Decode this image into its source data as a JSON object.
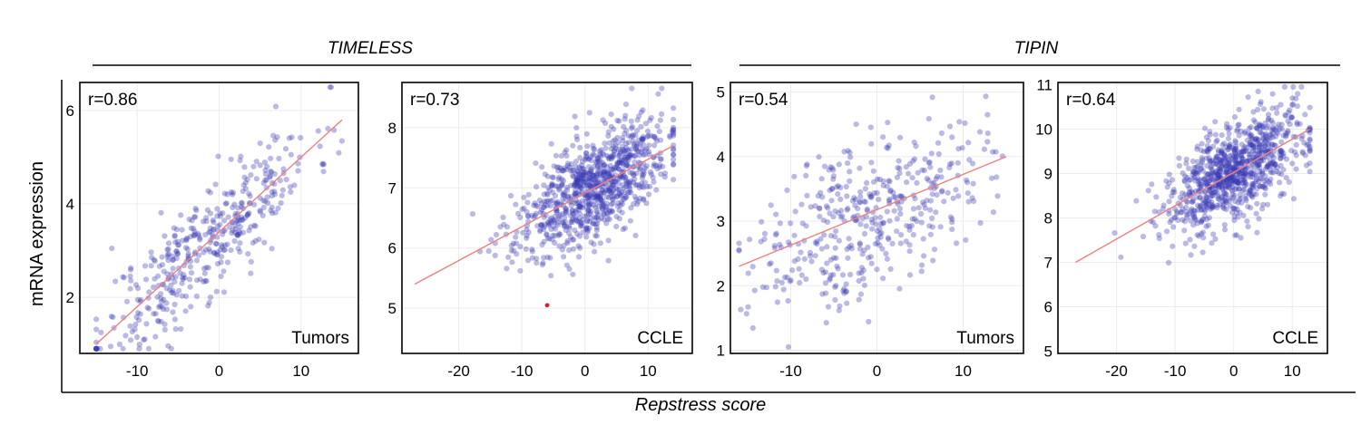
{
  "figure": {
    "group_titles": [
      "TIMELESS",
      "TIPIN"
    ],
    "ylabel": "mRNA expression",
    "xlabel": "Repstress score"
  },
  "chart_data": [
    {
      "type": "scatter",
      "group": "TIMELESS",
      "r_label": "r=0.86",
      "dataset_label": "Tumors",
      "xlim": [
        -17,
        17
      ],
      "ylim": [
        0.8,
        6.6
      ],
      "xticks": [
        -10,
        0,
        10
      ],
      "yticks": [
        2,
        4,
        6
      ],
      "point_color": "#3a3ab4",
      "fit_color": "#f08080",
      "fit": {
        "x": [
          -15,
          15
        ],
        "y": [
          1.0,
          5.8
        ]
      },
      "n_points": 420,
      "seed": 11,
      "x_center": -1.5,
      "x_spread": 6.5,
      "noise": 0.6,
      "outliers": []
    },
    {
      "type": "scatter",
      "group": "TIMELESS",
      "r_label": "r=0.73",
      "dataset_label": "CCLE",
      "xlim": [
        -29,
        17
      ],
      "ylim": [
        4.25,
        8.75
      ],
      "xticks": [
        -20,
        -10,
        0,
        10
      ],
      "yticks": [
        5,
        6,
        7,
        8
      ],
      "point_color": "#3a3ab4",
      "fit_color": "#f08080",
      "fit": {
        "x": [
          -27,
          14
        ],
        "y": [
          5.4,
          7.7
        ]
      },
      "n_points": 900,
      "seed": 23,
      "x_center": 1,
      "x_spread": 6,
      "noise": 0.42,
      "outliers": [
        {
          "x": -6,
          "y": 5.05,
          "color": "#e02020"
        }
      ]
    },
    {
      "type": "scatter",
      "group": "TIPIN",
      "r_label": "r=0.54",
      "dataset_label": "Tumors",
      "xlim": [
        -17,
        17
      ],
      "ylim": [
        0.95,
        5.15
      ],
      "xticks": [
        -10,
        0,
        10
      ],
      "yticks": [
        1,
        2,
        3,
        4,
        5
      ],
      "point_color": "#3a3ab4",
      "fit_color": "#f08080",
      "fit": {
        "x": [
          -16,
          15
        ],
        "y": [
          2.3,
          4.0
        ]
      },
      "n_points": 420,
      "seed": 37,
      "x_center": -1,
      "x_spread": 6.5,
      "noise": 0.6,
      "outliers": []
    },
    {
      "type": "scatter",
      "group": "TIPIN",
      "r_label": "r=0.64",
      "dataset_label": "CCLE",
      "xlim": [
        -30,
        16
      ],
      "ylim": [
        4.95,
        11.05
      ],
      "xticks": [
        -20,
        -10,
        0,
        10
      ],
      "yticks": [
        5,
        6,
        7,
        8,
        9,
        10,
        11
      ],
      "point_color": "#3a3ab4",
      "fit_color": "#f08080",
      "fit": {
        "x": [
          -27,
          13
        ],
        "y": [
          7.0,
          10.0
        ]
      },
      "n_points": 900,
      "seed": 53,
      "x_center": 0.5,
      "x_spread": 6,
      "noise": 0.55,
      "outliers": []
    }
  ]
}
